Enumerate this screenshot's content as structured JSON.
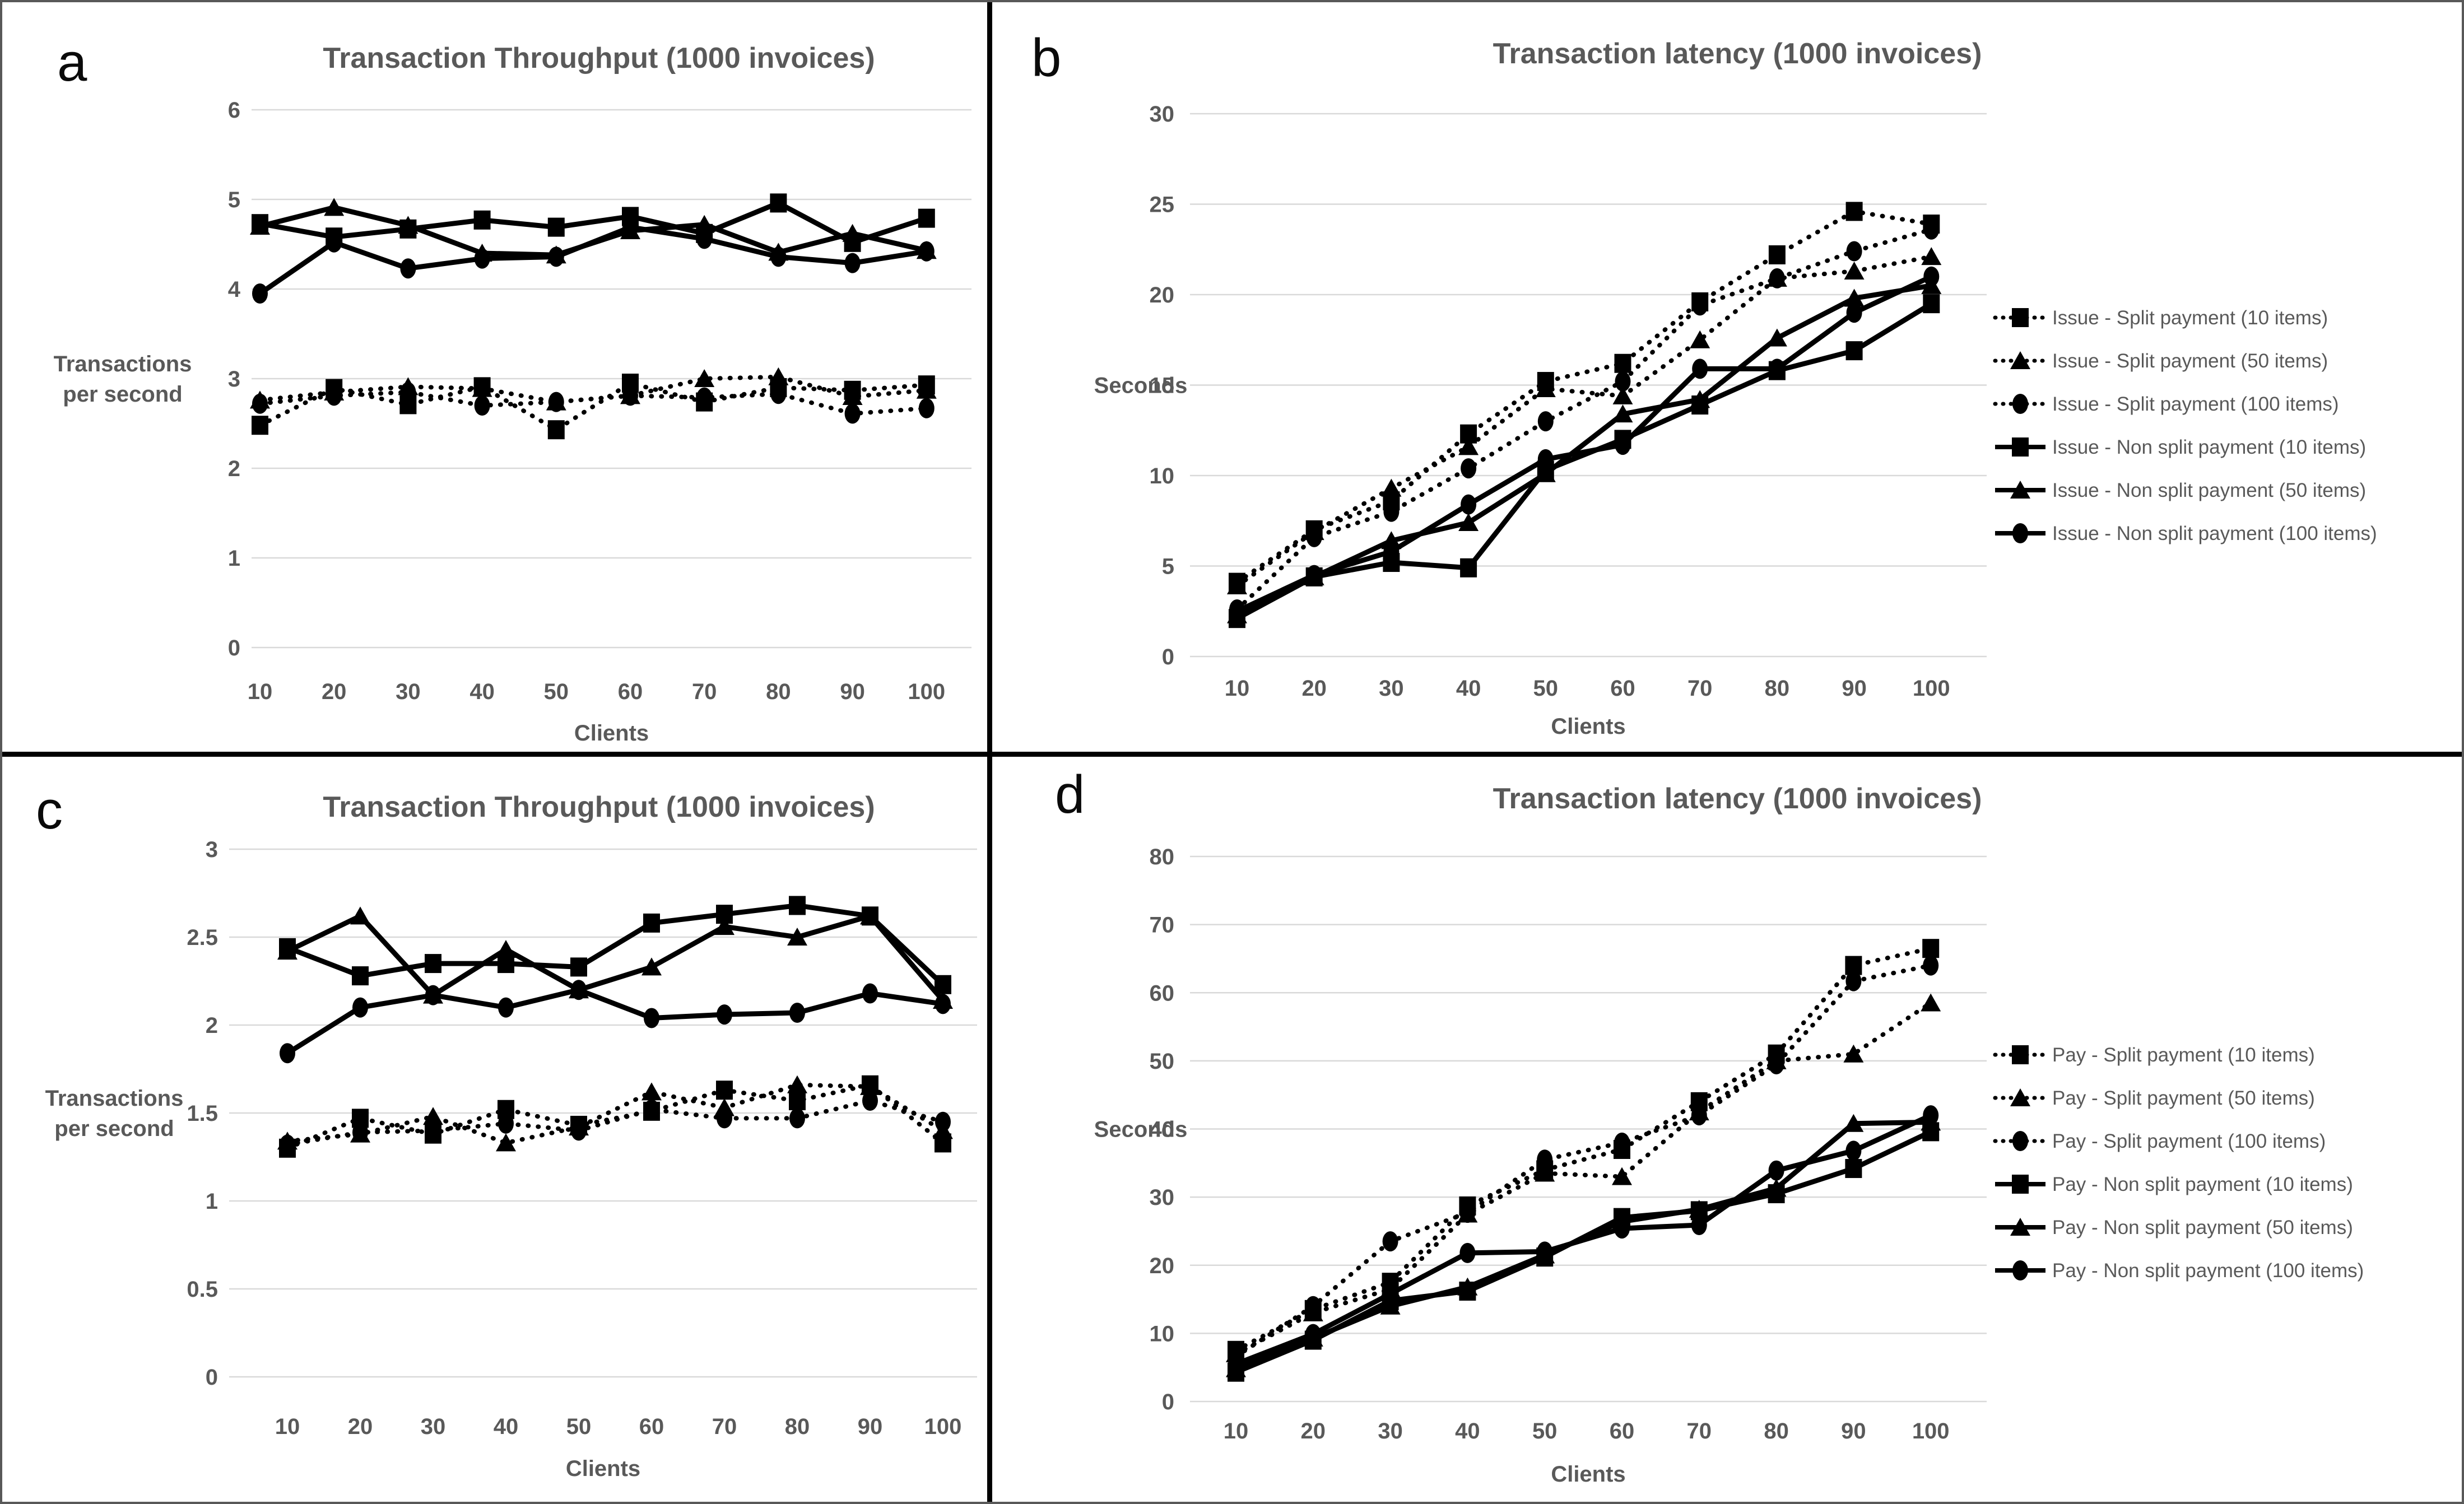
{
  "figure": {
    "panel_letters": [
      "a",
      "b",
      "c",
      "d"
    ],
    "colors": {
      "series": "#000000",
      "gridline": "#d9d9d9",
      "text": "#595959",
      "letter": "#0a0a0a"
    }
  },
  "chart_data": [
    {
      "panel_letter": "a",
      "type": "line",
      "title": "Transaction Throughput (1000 invoices)",
      "xlabel": "Clients",
      "ylabel_lines": [
        "Transactions",
        "per second"
      ],
      "ylabel_at": 3,
      "x": [
        10,
        20,
        30,
        40,
        50,
        60,
        70,
        80,
        90,
        100
      ],
      "ylim": [
        0,
        6
      ],
      "ystep": 1,
      "grid": true,
      "legend_position": "none",
      "series": [
        {
          "name": "Issue - Split payment (10 items)",
          "marker": "square",
          "line": "dotted",
          "values": [
            2.48,
            2.89,
            2.71,
            2.91,
            2.43,
            2.95,
            2.74,
            2.9,
            2.87,
            2.93
          ]
        },
        {
          "name": "Issue - Split payment (50 items)",
          "marker": "triangle",
          "line": "dotted",
          "values": [
            2.76,
            2.85,
            2.91,
            2.89,
            2.74,
            2.81,
            3.0,
            3.02,
            2.8,
            2.87
          ]
        },
        {
          "name": "Issue - Split payment (100 items)",
          "marker": "circle",
          "line": "dotted",
          "values": [
            2.72,
            2.81,
            2.85,
            2.7,
            2.74,
            2.81,
            2.79,
            2.83,
            2.61,
            2.67
          ]
        },
        {
          "name": "Issue - Non split payment (10 items)",
          "marker": "square",
          "line": "solid",
          "values": [
            4.73,
            4.58,
            4.67,
            4.77,
            4.69,
            4.81,
            4.62,
            4.96,
            4.52,
            4.79
          ]
        },
        {
          "name": "Issue - Non split payment (50 items)",
          "marker": "triangle",
          "line": "solid",
          "values": [
            4.7,
            4.91,
            4.71,
            4.4,
            4.38,
            4.65,
            4.72,
            4.41,
            4.62,
            4.43
          ]
        },
        {
          "name": "Issue - Non split payment (100 items)",
          "marker": "circle",
          "line": "solid",
          "values": [
            3.95,
            4.52,
            4.23,
            4.34,
            4.36,
            4.69,
            4.56,
            4.36,
            4.29,
            4.42
          ]
        }
      ]
    },
    {
      "panel_letter": "b",
      "type": "line",
      "title": "Transaction latency (1000 invoices)",
      "xlabel": "Clients",
      "ylabel_lines": [
        "Seconds"
      ],
      "ylabel_at": 15,
      "x": [
        10,
        20,
        30,
        40,
        50,
        60,
        70,
        80,
        90,
        100
      ],
      "ylim": [
        0,
        30
      ],
      "ystep": 5,
      "grid": true,
      "legend_position": "right",
      "series": [
        {
          "name": "Issue - Split payment (10 items)",
          "marker": "square",
          "line": "dotted",
          "values": [
            4.1,
            7.0,
            8.6,
            12.3,
            15.2,
            16.2,
            19.6,
            22.2,
            24.6,
            23.9
          ]
        },
        {
          "name": "Issue - Split payment (50 items)",
          "marker": "triangle",
          "line": "dotted",
          "values": [
            3.9,
            6.9,
            9.3,
            11.6,
            14.8,
            14.4,
            17.5,
            20.9,
            21.3,
            22.1
          ]
        },
        {
          "name": "Issue - Split payment (100 items)",
          "marker": "circle",
          "line": "dotted",
          "values": [
            2.6,
            6.6,
            8.0,
            10.4,
            13.0,
            15.2,
            19.4,
            20.9,
            22.4,
            23.6
          ]
        },
        {
          "name": "Issue - Non split payment (10 items)",
          "marker": "square",
          "line": "solid",
          "values": [
            2.1,
            4.4,
            5.2,
            4.9,
            10.3,
            12.0,
            13.9,
            15.8,
            16.9,
            19.5
          ]
        },
        {
          "name": "Issue - Non split payment (50 items)",
          "marker": "triangle",
          "line": "solid",
          "values": [
            2.3,
            4.4,
            6.4,
            7.4,
            10.1,
            13.4,
            14.2,
            17.6,
            19.8,
            20.5
          ]
        },
        {
          "name": "Issue - Non split payment (100 items)",
          "marker": "circle",
          "line": "solid",
          "values": [
            2.5,
            4.5,
            5.8,
            8.4,
            10.9,
            11.7,
            15.9,
            15.9,
            19.0,
            21.0
          ]
        }
      ]
    },
    {
      "panel_letter": "c",
      "type": "line",
      "title": "Transaction Throughput (1000 invoices)",
      "xlabel": "Clients",
      "ylabel_lines": [
        "Transactions",
        "per second"
      ],
      "ylabel_at": 1.5,
      "x": [
        10,
        20,
        30,
        40,
        50,
        60,
        70,
        80,
        90,
        100
      ],
      "ylim": [
        0,
        3
      ],
      "ystep": 0.5,
      "grid": true,
      "legend_position": "none",
      "series": [
        {
          "name": "Pay - Split payment (10 items)",
          "marker": "square",
          "line": "dotted",
          "values": [
            1.3,
            1.47,
            1.38,
            1.52,
            1.43,
            1.51,
            1.63,
            1.57,
            1.66,
            1.33
          ]
        },
        {
          "name": "Pay - Split payment (50 items)",
          "marker": "triangle",
          "line": "dotted",
          "values": [
            1.34,
            1.38,
            1.48,
            1.33,
            1.42,
            1.62,
            1.53,
            1.66,
            1.65,
            1.4
          ]
        },
        {
          "name": "Pay - Split payment (100 items)",
          "marker": "circle",
          "line": "dotted",
          "values": [
            1.32,
            1.39,
            1.4,
            1.44,
            1.4,
            1.52,
            1.47,
            1.47,
            1.57,
            1.45
          ]
        },
        {
          "name": "Pay - Non split payment (10 items)",
          "marker": "square",
          "line": "solid",
          "values": [
            2.44,
            2.28,
            2.35,
            2.35,
            2.33,
            2.58,
            2.63,
            2.68,
            2.62,
            2.23
          ]
        },
        {
          "name": "Pay - Non split payment (50 items)",
          "marker": "triangle",
          "line": "solid",
          "values": [
            2.42,
            2.62,
            2.17,
            2.43,
            2.2,
            2.33,
            2.56,
            2.5,
            2.62,
            2.14
          ]
        },
        {
          "name": "Pay - Non split payment (100 items)",
          "marker": "circle",
          "line": "solid",
          "values": [
            1.84,
            2.1,
            2.17,
            2.1,
            2.2,
            2.04,
            2.06,
            2.07,
            2.18,
            2.12
          ]
        }
      ]
    },
    {
      "panel_letter": "d",
      "type": "line",
      "title": "Transaction latency (1000 invoices)",
      "xlabel": "Clients",
      "ylabel_lines": [
        "Seconds"
      ],
      "ylabel_at": 40,
      "x": [
        10,
        20,
        30,
        40,
        50,
        60,
        70,
        80,
        90,
        100
      ],
      "ylim": [
        0,
        80
      ],
      "ystep": 10,
      "grid": true,
      "legend_position": "right",
      "series": [
        {
          "name": "Pay - Split payment (10 items)",
          "marker": "square",
          "line": "dotted",
          "values": [
            7.5,
            13.5,
            17.5,
            28.7,
            34.0,
            37.0,
            44.0,
            51.0,
            64.0,
            66.5
          ]
        },
        {
          "name": "Pay - Split payment (50 items)",
          "marker": "triangle",
          "line": "dotted",
          "values": [
            7.0,
            13.0,
            16.5,
            27.5,
            33.5,
            33.0,
            42.5,
            50.0,
            51.0,
            58.5
          ]
        },
        {
          "name": "Pay - Split payment (100 items)",
          "marker": "circle",
          "line": "dotted",
          "values": [
            6.6,
            14.0,
            23.5,
            27.7,
            35.5,
            38.0,
            42.0,
            49.5,
            61.7,
            64.0
          ]
        },
        {
          "name": "Pay - Non split payment (10 items)",
          "marker": "square",
          "line": "solid",
          "values": [
            4.3,
            9.0,
            14.8,
            16.2,
            21.2,
            27.0,
            28.0,
            30.5,
            34.2,
            39.6
          ]
        },
        {
          "name": "Pay - Non split payment (50 items)",
          "marker": "triangle",
          "line": "solid",
          "values": [
            4.8,
            9.3,
            14.0,
            16.8,
            21.5,
            26.4,
            28.2,
            31.3,
            40.8,
            41.0
          ]
        },
        {
          "name": "Pay - Non split payment (100 items)",
          "marker": "circle",
          "line": "solid",
          "values": [
            5.5,
            9.9,
            15.8,
            21.8,
            22.0,
            25.4,
            25.9,
            33.9,
            36.8,
            42.0
          ]
        }
      ]
    }
  ]
}
